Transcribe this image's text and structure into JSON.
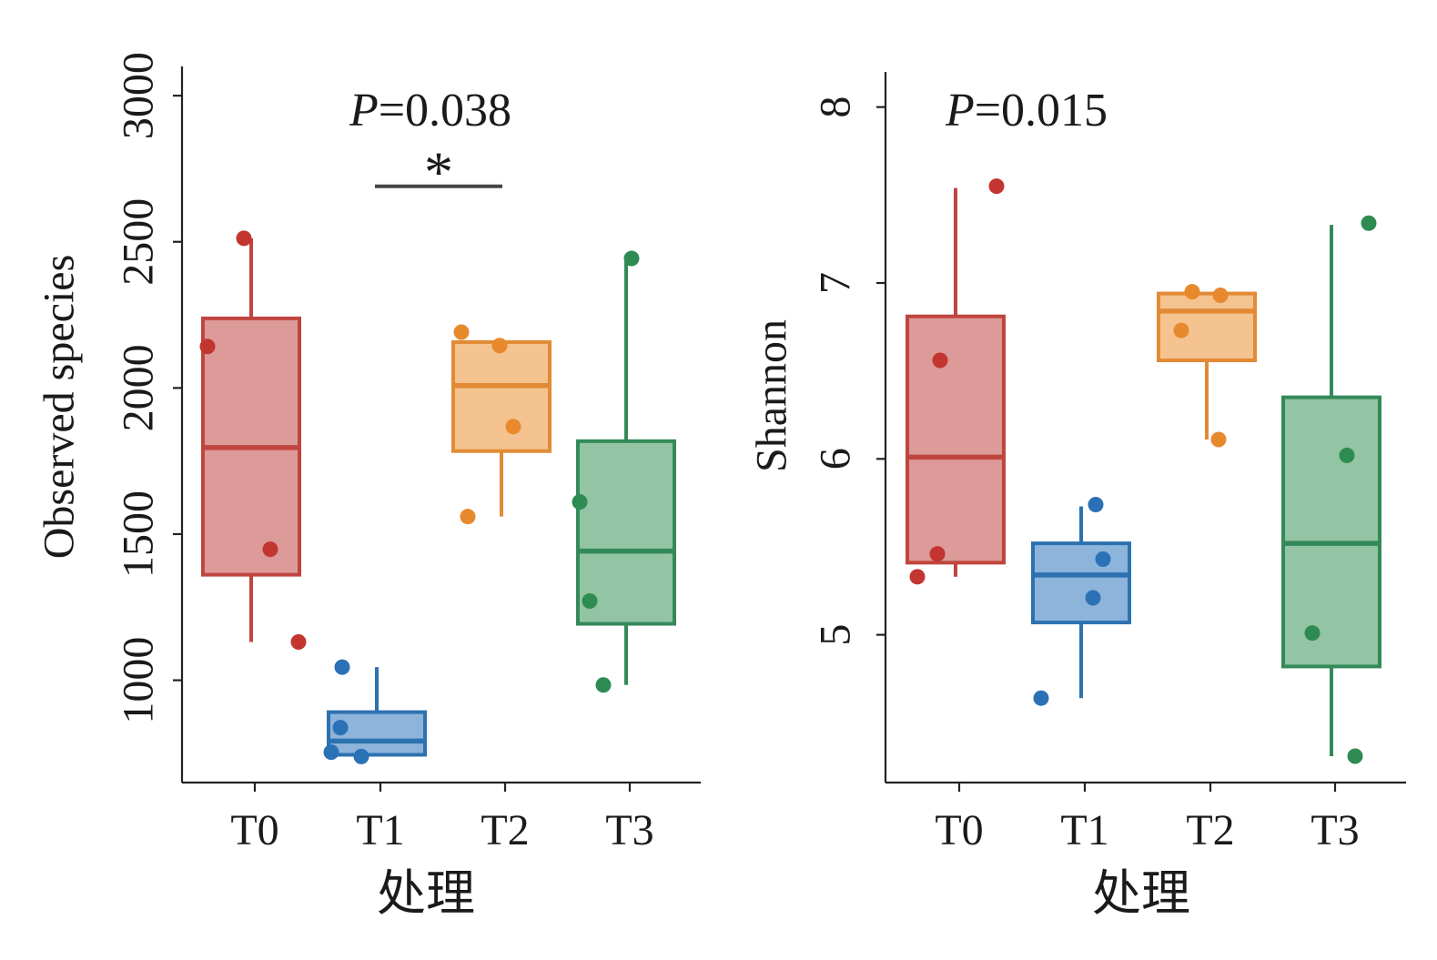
{
  "palette": {
    "T0": {
      "stroke": "#c0453f",
      "fill": "#dc9a98",
      "point": "#c23530"
    },
    "T1": {
      "stroke": "#2d72b0",
      "fill": "#8db4db",
      "point": "#2b71b6"
    },
    "T2": {
      "stroke": "#e28a35",
      "fill": "#f4c38f",
      "point": "#e8892e"
    },
    "T3": {
      "stroke": "#338a58",
      "fill": "#93c4a4",
      "point": "#2e8b52"
    }
  },
  "chart_data": [
    {
      "type": "box",
      "ylabel": "Observed species",
      "xlabel": "处理",
      "categories": [
        "T0",
        "T1",
        "T2",
        "T3"
      ],
      "ylim": [
        650,
        3100
      ],
      "yticks": [
        1000,
        1500,
        2000,
        2500,
        3000
      ],
      "grid": false,
      "annotation": {
        "italic": "P",
        "text": "=0.038"
      },
      "significance": [
        {
          "from": "T1",
          "to": "T2",
          "label": "*",
          "y": 2690
        }
      ],
      "boxes": [
        {
          "category": "T0",
          "whisker_low": 1131,
          "q1": 1361,
          "median": 1796,
          "q3": 2238,
          "whisker_high": 2512,
          "points": [
            2512,
            2142,
            1448,
            1131
          ]
        },
        {
          "category": "T1",
          "whisker_low": 739,
          "q1": 745,
          "median": 792,
          "q3": 891,
          "whisker_high": 1045,
          "points": [
            1045,
            838,
            754,
            739
          ]
        },
        {
          "category": "T2",
          "whisker_low": 1560,
          "q1": 1784,
          "median": 2008,
          "q3": 2157,
          "whisker_high": 2157,
          "points": [
            2191,
            2145,
            1868,
            1560
          ]
        },
        {
          "category": "T3",
          "whisker_low": 984,
          "q1": 1193,
          "median": 1442,
          "q3": 1818,
          "whisker_high": 2443,
          "points": [
            2443,
            1610,
            1271,
            984
          ]
        }
      ]
    },
    {
      "type": "box",
      "ylabel": "Shannon",
      "xlabel": "处理",
      "categories": [
        "T0",
        "T1",
        "T2",
        "T3"
      ],
      "ylim": [
        4.16,
        8.2
      ],
      "yticks": [
        5,
        6,
        7,
        8
      ],
      "grid": false,
      "annotation": {
        "italic": "P",
        "text": "=0.015"
      },
      "boxes": [
        {
          "category": "T0",
          "whisker_low": 5.33,
          "q1": 5.41,
          "median": 6.01,
          "q3": 6.81,
          "whisker_high": 7.54,
          "points": [
            7.55,
            6.56,
            5.46,
            5.33
          ]
        },
        {
          "category": "T1",
          "whisker_low": 4.64,
          "q1": 5.07,
          "median": 5.34,
          "q3": 5.52,
          "whisker_high": 5.73,
          "points": [
            5.74,
            5.43,
            5.21,
            4.64
          ]
        },
        {
          "category": "T2",
          "whisker_low": 6.11,
          "q1": 6.56,
          "median": 6.84,
          "q3": 6.94,
          "whisker_high": 6.94,
          "points": [
            6.95,
            6.93,
            6.73,
            6.11
          ]
        },
        {
          "category": "T3",
          "whisker_low": 4.31,
          "q1": 4.82,
          "median": 5.52,
          "q3": 6.35,
          "whisker_high": 7.33,
          "points": [
            7.34,
            6.02,
            5.01,
            4.31
          ]
        }
      ]
    }
  ]
}
